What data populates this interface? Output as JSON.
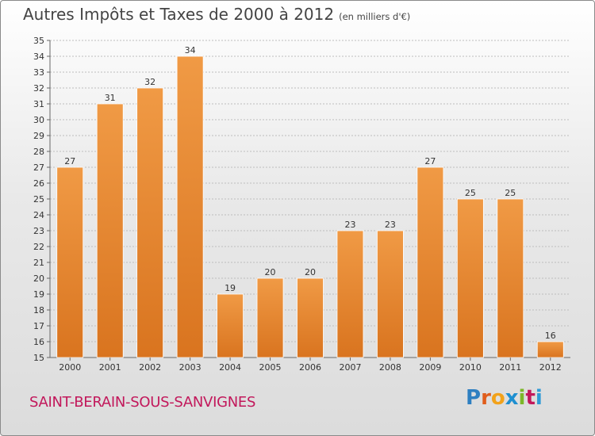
{
  "header": {
    "title": "Autres Impôts et Taxes de 2000 à 2012",
    "unit": "(en milliers d'€)"
  },
  "footer": {
    "city": "SAINT-BERAIN-SOUS-SANVIGNES",
    "logo": {
      "letters": [
        "P",
        "r",
        "o",
        "x",
        "i",
        "t",
        "i"
      ],
      "colors": [
        "#2e7fc1",
        "#e05d1c",
        "#f2a21a",
        "#1e8fd0",
        "#7cb728",
        "#c2185b",
        "#2e9ad6"
      ]
    }
  },
  "colors": {
    "bar": "#f09a45",
    "bar_dark": "#d9741f",
    "grid": "#bdbdbd"
  },
  "chart_data": {
    "type": "bar",
    "categories": [
      "2000",
      "2001",
      "2002",
      "2003",
      "2004",
      "2005",
      "2006",
      "2007",
      "2008",
      "2009",
      "2010",
      "2011",
      "2012"
    ],
    "values": [
      27,
      31,
      32,
      34,
      19,
      20,
      20,
      23,
      23,
      27,
      25,
      25,
      16
    ],
    "title": "Autres Impôts et Taxes de 2000 à 2012",
    "ylim": [
      15,
      35
    ],
    "yticks": [
      15,
      16,
      17,
      18,
      19,
      20,
      21,
      22,
      23,
      24,
      25,
      26,
      27,
      28,
      29,
      30,
      31,
      32,
      33,
      34,
      35
    ],
    "grid": true
  }
}
